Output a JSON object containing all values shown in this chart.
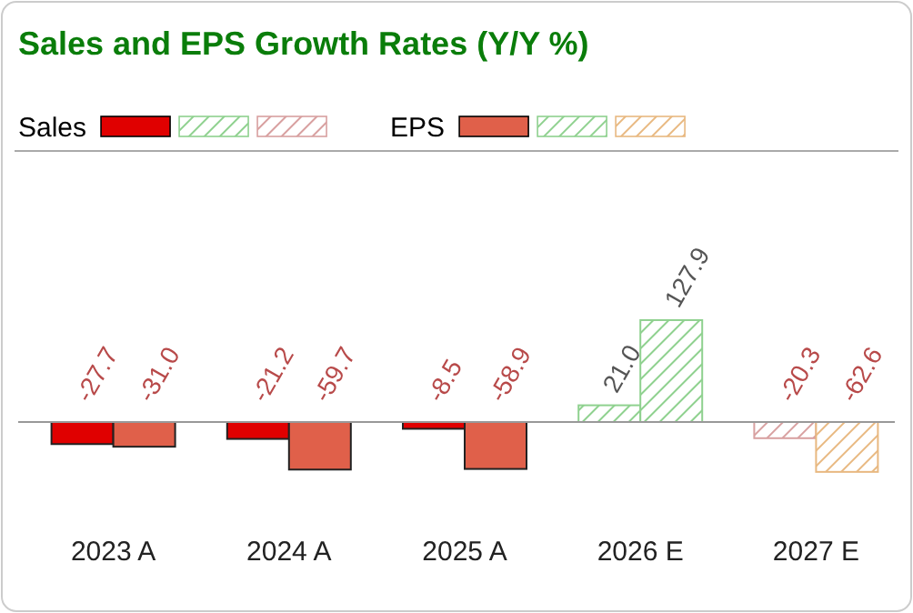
{
  "chart_data": {
    "type": "bar",
    "title": "Sales and EPS Growth Rates (Y/Y %)",
    "categories": [
      "2023 A",
      "2024 A",
      "2025 A",
      "2026 E",
      "2027 E"
    ],
    "series": [
      {
        "name": "Sales",
        "colors": [
          "#e00000",
          "#e00000",
          "#e00000",
          "#8fd18f",
          "#d8a0a0"
        ],
        "values": [
          -27.7,
          -21.2,
          -8.5,
          21.0,
          -20.3
        ],
        "value_labels": [
          "-27.7",
          "-21.2",
          "-8.5",
          "21.0",
          "-20.3"
        ]
      },
      {
        "name": "EPS",
        "colors": [
          "#e0604a",
          "#e0604a",
          "#e0604a",
          "#8fd18f",
          "#e8b880"
        ],
        "values": [
          -31.0,
          -59.7,
          -58.9,
          127.9,
          -62.6
        ],
        "value_labels": [
          "-31.0",
          "-59.7",
          "-58.9",
          "127.9",
          "-62.6"
        ]
      }
    ],
    "legend": "top"
  }
}
